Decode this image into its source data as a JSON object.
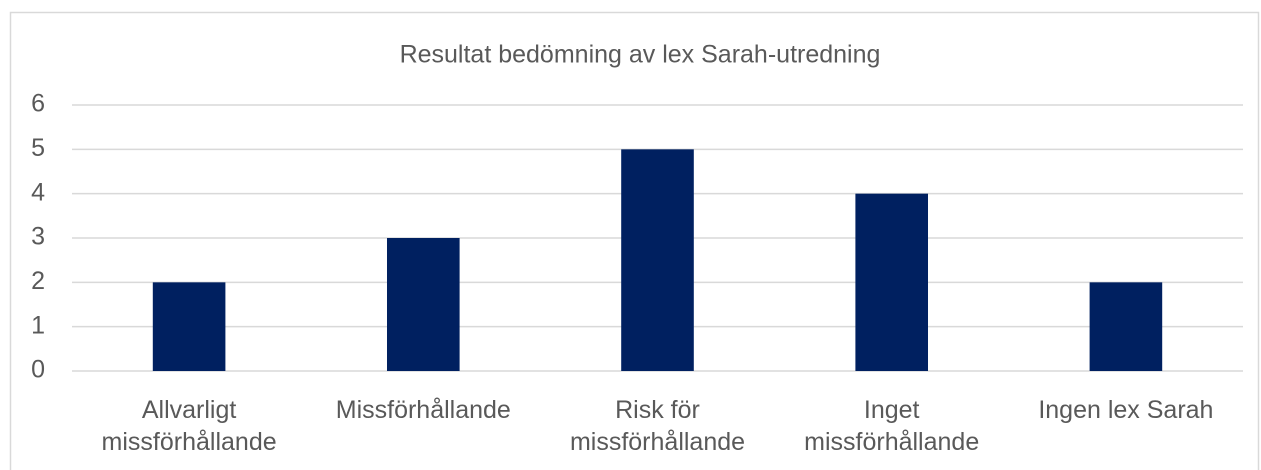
{
  "chart_data": {
    "type": "bar",
    "title": "Resultat bedömning av lex Sarah-utredning",
    "categories": [
      "Allvarligt missförhållande",
      "Missförhållande",
      "Risk för missförhållande",
      "Inget missförhållande",
      "Ingen lex Sarah"
    ],
    "values": [
      2,
      3,
      5,
      4,
      2
    ],
    "color": "#002060",
    "ylim": [
      0,
      6
    ],
    "yticks": [
      0,
      1,
      2,
      3,
      4,
      5,
      6
    ],
    "grid": true
  }
}
